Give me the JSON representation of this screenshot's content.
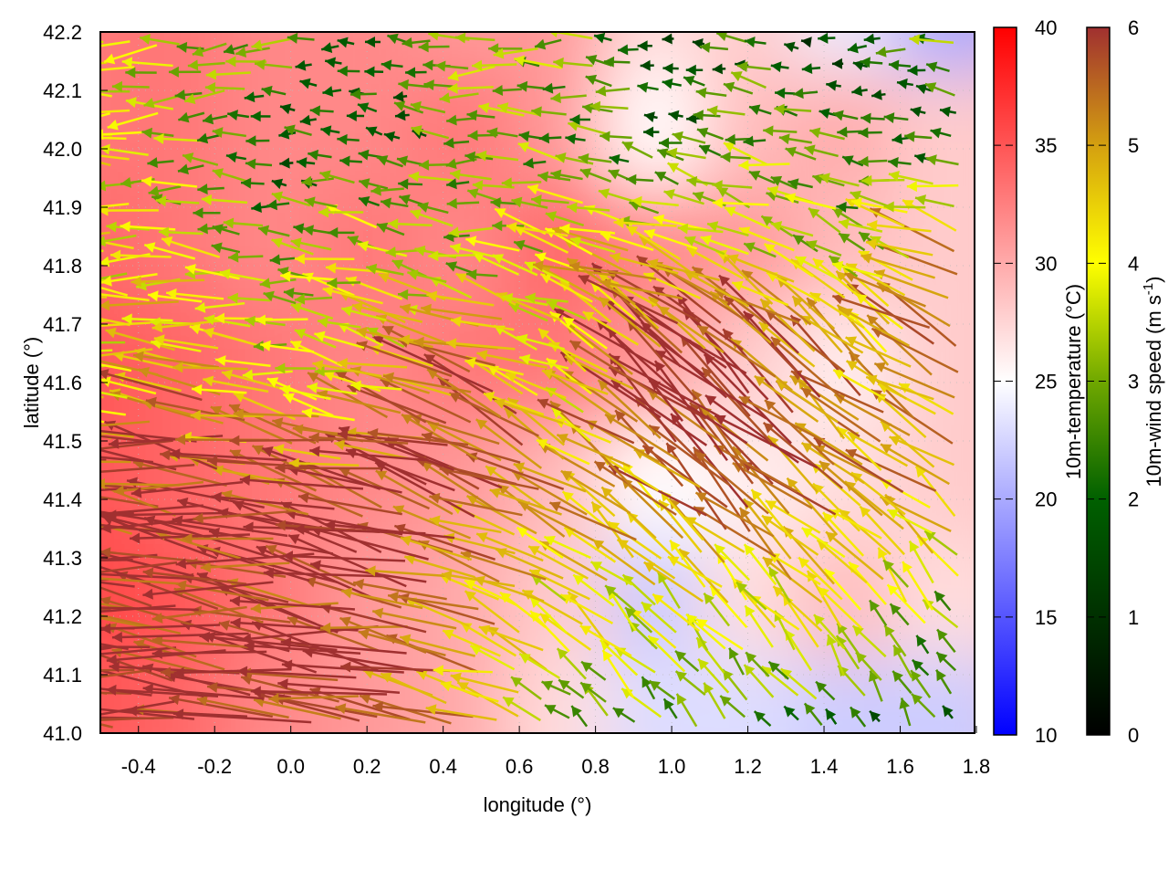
{
  "chart_data": {
    "type": "heatmap",
    "subtype": "map with wind vectors and contours",
    "xlabel": "longitude (°)",
    "ylabel": "latitude (°)",
    "xlim": [
      -0.5,
      1.8
    ],
    "ylim": [
      41.0,
      42.2
    ],
    "xticks": [
      "-0.4",
      "-0.2",
      "0.0",
      "0.2",
      "0.4",
      "0.6",
      "0.8",
      "1.0",
      "1.2",
      "1.4",
      "1.6",
      "1.8"
    ],
    "yticks": [
      "41.0",
      "41.1",
      "41.2",
      "41.3",
      "41.4",
      "41.5",
      "41.6",
      "41.7",
      "41.8",
      "41.9",
      "42.0",
      "42.1",
      "42.2"
    ],
    "grid": true,
    "temperature": {
      "label": "10m-temperature (°C)",
      "range": [
        10,
        40
      ],
      "ticks": [
        "10",
        "15",
        "20",
        "25",
        "30",
        "35",
        "40"
      ],
      "palette": {
        "low": "#0000ff",
        "mid": "#ffffff",
        "high": "#ff0000",
        "mid_value": 25
      },
      "grid_lon": [
        -0.5,
        -0.25,
        0,
        0.25,
        0.5,
        0.75,
        1.0,
        1.25,
        1.5,
        1.75
      ],
      "grid_lat": [
        42.2,
        42.0,
        41.8,
        41.6,
        41.4,
        41.2,
        41.0
      ],
      "values": [
        [
          33,
          33,
          32,
          32,
          31,
          31,
          27,
          28,
          24,
          20
        ],
        [
          33,
          33,
          32,
          32,
          33,
          31,
          25,
          29,
          30,
          28
        ],
        [
          34,
          33,
          32,
          33,
          32,
          34,
          32,
          31,
          29,
          28
        ],
        [
          35,
          34,
          33,
          32,
          33,
          33,
          31,
          28,
          26,
          28
        ],
        [
          35,
          34,
          33,
          32,
          31,
          29,
          25,
          26,
          27,
          28
        ],
        [
          36,
          35,
          33,
          31,
          30,
          28,
          22,
          27,
          29,
          27
        ],
        [
          35,
          34,
          32,
          31,
          30,
          27,
          23,
          23,
          22,
          22
        ]
      ]
    },
    "wind": {
      "label_main": "10m-wind speed (m s",
      "label_sup": "-1",
      "label_end": ")",
      "range": [
        0,
        6
      ],
      "ticks": [
        "0",
        "1",
        "2",
        "3",
        "4",
        "5",
        "6"
      ],
      "palette": [
        "#000000",
        "#003000",
        "#006000",
        "#70a800",
        "#ffff00",
        "#d4a010",
        "#a03030"
      ],
      "speed": [
        [
          4,
          3,
          3,
          2,
          3,
          3,
          2,
          2,
          1,
          3
        ],
        [
          4,
          3,
          2,
          2,
          3,
          3,
          2,
          3,
          3,
          2
        ],
        [
          4,
          4,
          3,
          4,
          3,
          4,
          5,
          4,
          3,
          6
        ],
        [
          4,
          5,
          4,
          4,
          6,
          4,
          6,
          6,
          5,
          5
        ],
        [
          6,
          6,
          6,
          6,
          6,
          5,
          5,
          6,
          5,
          5
        ],
        [
          6,
          6,
          6,
          6,
          5,
          4,
          4,
          4,
          4,
          3
        ],
        [
          6,
          6,
          6,
          6,
          5,
          3,
          3,
          3,
          2,
          2
        ]
      ],
      "direction_deg": [
        [
          180,
          185,
          180,
          175,
          180,
          180,
          175,
          170,
          180,
          175
        ],
        [
          180,
          180,
          175,
          170,
          180,
          170,
          165,
          170,
          175,
          170
        ],
        [
          180,
          178,
          175,
          170,
          170,
          165,
          160,
          155,
          150,
          160
        ],
        [
          178,
          175,
          170,
          165,
          160,
          150,
          140,
          135,
          140,
          150
        ],
        [
          175,
          172,
          170,
          165,
          160,
          150,
          140,
          140,
          140,
          145
        ],
        [
          175,
          175,
          172,
          170,
          165,
          145,
          135,
          135,
          130,
          130
        ],
        [
          175,
          175,
          175,
          175,
          170,
          140,
          130,
          125,
          120,
          120
        ]
      ]
    }
  }
}
